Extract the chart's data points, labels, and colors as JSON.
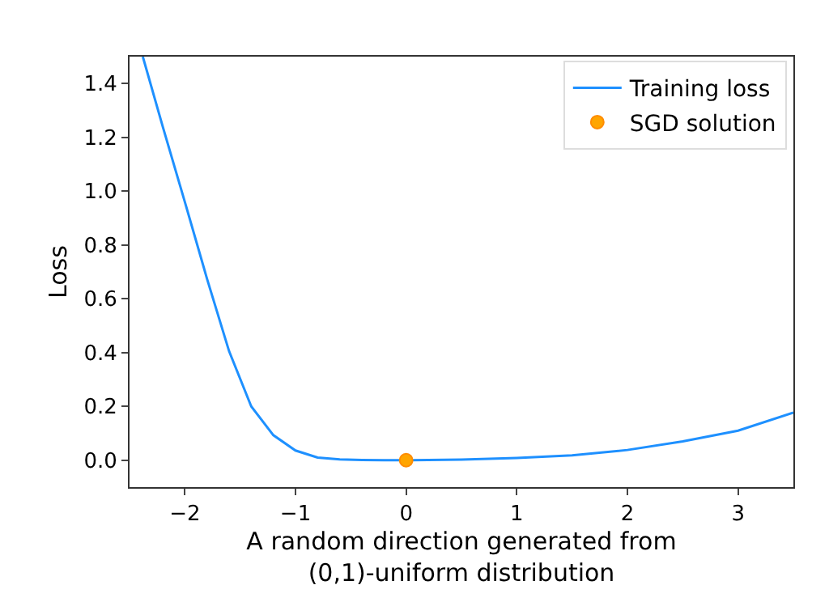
{
  "chart_data": {
    "type": "line",
    "xlabel": "A random direction generated from\n(0,1)-uniform distribution",
    "ylabel": "Loss",
    "xlim": [
      -2.5,
      3.5
    ],
    "xticks": [
      {
        "value": -2,
        "label": "−2"
      },
      {
        "value": -1,
        "label": "−1"
      },
      0,
      1,
      2,
      3
    ],
    "ylim": [
      -0.1,
      1.5
    ],
    "yticks": [
      {
        "value": 0,
        "label": "0.0"
      },
      {
        "value": 0.2,
        "label": "0.2"
      },
      {
        "value": 0.4,
        "label": "0.4"
      },
      {
        "value": 0.6,
        "label": "0.6"
      },
      {
        "value": 0.8,
        "label": "0.8"
      },
      {
        "value": 1.0,
        "label": "1.0"
      },
      {
        "value": 1.2,
        "label": "1.2"
      },
      {
        "value": 1.4,
        "label": "1.4"
      }
    ],
    "series": [
      {
        "name": "Training loss",
        "color": "#1e90ff",
        "marker": "none",
        "x": [
          -2.38,
          -2.2,
          -2.0,
          -1.8,
          -1.6,
          -1.4,
          -1.2,
          -1.0,
          -0.8,
          -0.6,
          -0.4,
          -0.2,
          0,
          0.5,
          1.0,
          1.5,
          2.0,
          2.5,
          3.0,
          3.5
        ],
        "values": [
          1.5,
          1.24,
          0.96,
          0.675,
          0.405,
          0.2,
          0.093,
          0.036,
          0.01,
          0.003,
          0.001,
          0.0,
          0.0,
          0.002,
          0.008,
          0.018,
          0.038,
          0.07,
          0.11,
          0.177
        ]
      },
      {
        "name": "SGD solution",
        "color": "#ffa500",
        "type": "scatter",
        "marker": "circle",
        "x": [
          0
        ],
        "values": [
          0.0
        ]
      }
    ],
    "legend": "top right"
  }
}
